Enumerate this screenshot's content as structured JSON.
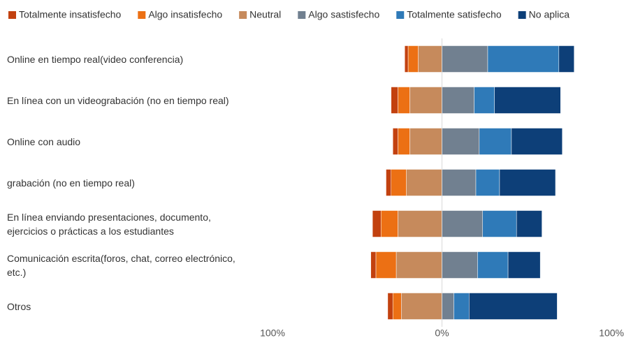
{
  "chart_data": {
    "type": "diverging-bar",
    "categories": [
      "Online en tiempo real(video conferencia)",
      "En línea con un videograbación (no en tiempo real)",
      "Online con audio",
      "grabación (no en tiempo real)",
      "En línea enviando presentaciones, documento, ejercicios o prácticas a los estudiantes",
      "Comunicación escrita(foros, chat, correo electrónico, etc.)",
      "Otros"
    ],
    "series": [
      {
        "name": "Totalmente insatisfecho",
        "color": "#c2410f",
        "values": [
          -2,
          -4,
          -3,
          -3,
          -5,
          -3,
          -3
        ]
      },
      {
        "name": "Algo insatisfecho",
        "color": "#ec7014",
        "values": [
          -6,
          -7,
          -7,
          -9,
          -10,
          -12,
          -5
        ]
      },
      {
        "name": "Neutral",
        "color": "#c68a5c",
        "values": [
          -14,
          -19,
          -19,
          -21,
          -26,
          -27,
          -24
        ]
      },
      {
        "name": "Algo sastisfecho",
        "color": "#718090",
        "values": [
          27,
          19,
          22,
          20,
          24,
          21,
          7
        ]
      },
      {
        "name": "Totalmente satisfecho",
        "color": "#2f7ab8",
        "values": [
          42,
          12,
          19,
          14,
          20,
          18,
          9
        ]
      },
      {
        "name": "No aplica",
        "color": "#0d3f78",
        "values": [
          9,
          39,
          30,
          33,
          15,
          19,
          52
        ]
      }
    ],
    "xlim": [
      -100,
      100
    ],
    "xticks": [
      {
        "value": -100,
        "label": "100%"
      },
      {
        "value": 0,
        "label": "0%"
      },
      {
        "value": 100,
        "label": "100%"
      }
    ],
    "legend": "top"
  }
}
